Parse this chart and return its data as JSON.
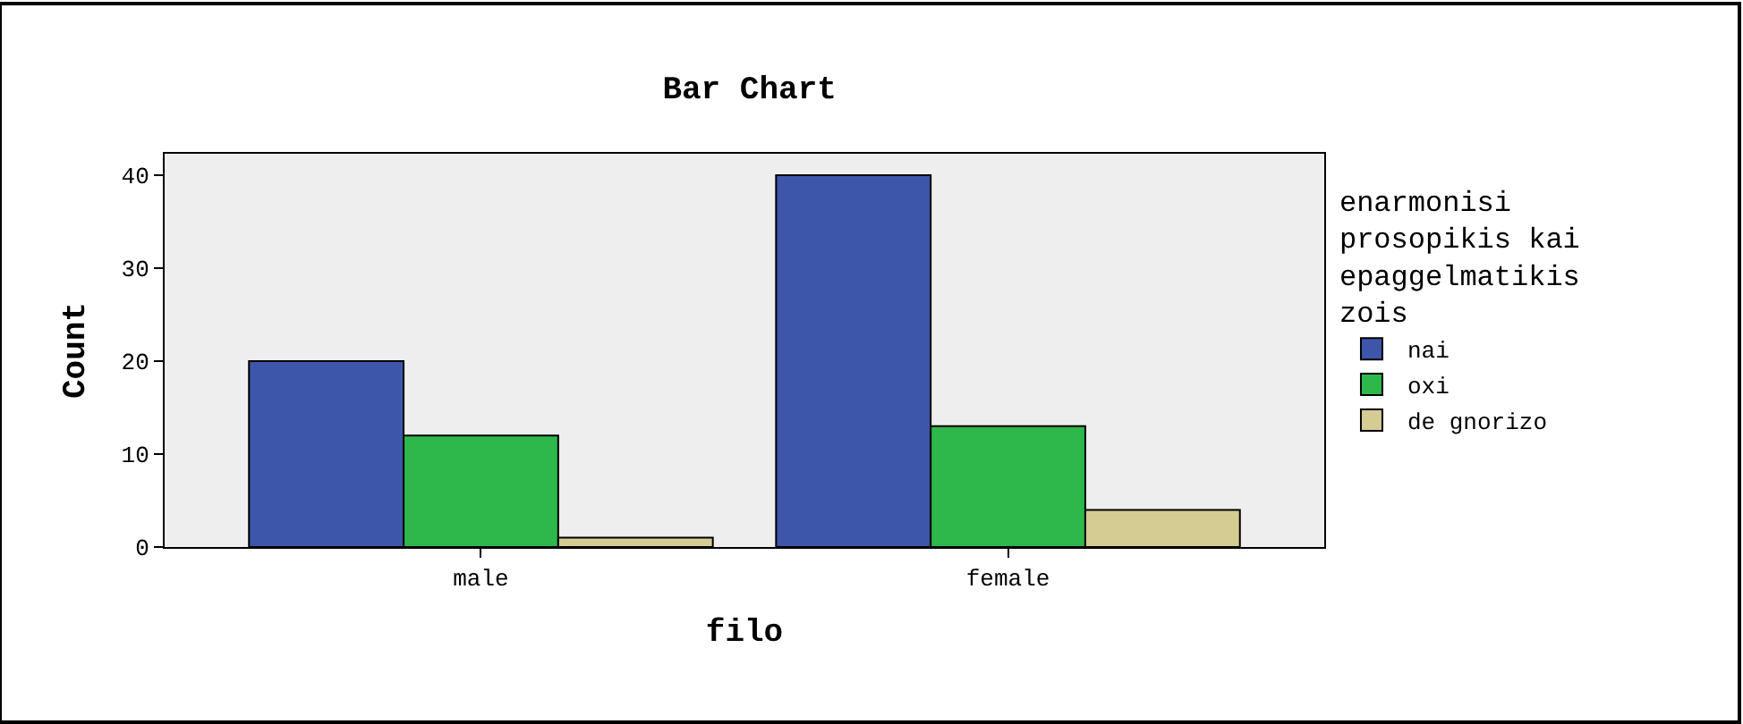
{
  "chart_data": {
    "type": "bar",
    "title": "Bar Chart",
    "xlabel": "filo",
    "ylabel": "Count",
    "legend_title": "enarmonisi\nprosopikis kai\nepaggelmatikis\nzois",
    "categories": [
      "male",
      "female"
    ],
    "series": [
      {
        "name": "nai",
        "color": "#3d56aa",
        "values": [
          20,
          40
        ]
      },
      {
        "name": "oxi",
        "color": "#2eb74a",
        "values": [
          12,
          13
        ]
      },
      {
        "name": "de gnorizo",
        "color": "#d4cc92",
        "values": [
          1,
          4
        ]
      }
    ],
    "ylim": [
      0,
      42.3
    ],
    "yticks": [
      0,
      10,
      20,
      30,
      40
    ],
    "grid": false,
    "legend": "right"
  }
}
